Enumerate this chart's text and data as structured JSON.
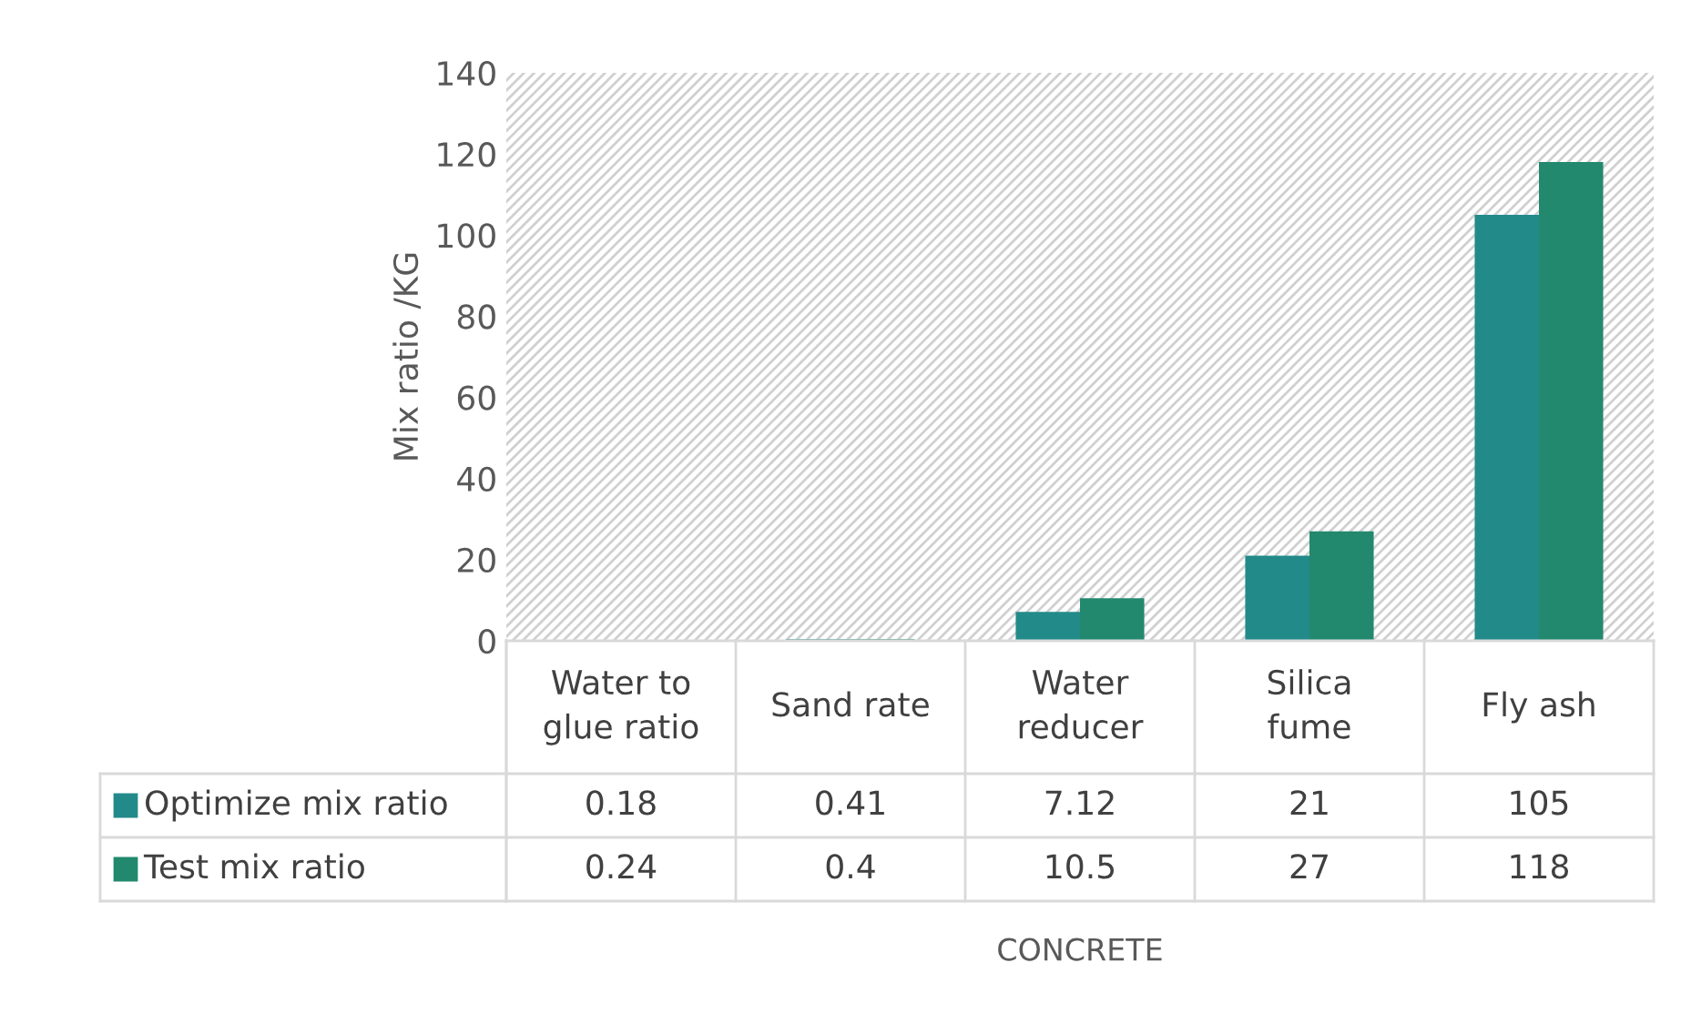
{
  "chart_data": {
    "type": "bar",
    "annotations": [
      "CONCRETE"
    ],
    "ylabel": "Mix ratio /KG",
    "categories": [
      "Water to\nglue ratio",
      "Sand rate",
      "Water\nreducer",
      "Silica\nfume",
      "Fly ash"
    ],
    "series": [
      {
        "name": "Optimize mix ratio",
        "color": "#238a8a",
        "values": [
          0.18,
          0.41,
          7.12,
          21,
          105
        ]
      },
      {
        "name": "Test mix ratio",
        "color": "#22896e",
        "values": [
          0.24,
          0.4,
          10.5,
          27,
          118
        ]
      }
    ],
    "ylim": [
      0,
      140
    ],
    "yticks": [
      0,
      20,
      40,
      60,
      80,
      100,
      120,
      140
    ],
    "data_labels": true,
    "legend": "bottom",
    "grid": false
  }
}
